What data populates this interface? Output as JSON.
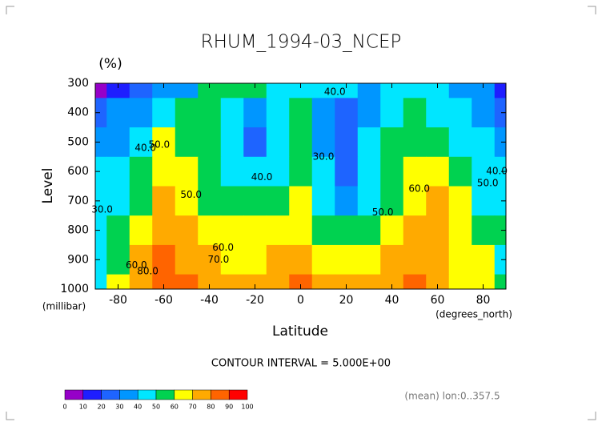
{
  "chart_data": {
    "type": "contour",
    "title": "RHUM_1994-03_NCEP",
    "unit": "(%)",
    "y_label": "Level",
    "y_unit": "(millibar)",
    "x_label": "Latitude",
    "x_unit": "(degrees_north)",
    "note": "CONTOUR INTERVAL = 5.000E+00",
    "footnote": "(mean) lon:0..357.5",
    "x": [
      -90,
      -80,
      -70,
      -60,
      -50,
      -40,
      -30,
      -20,
      -10,
      0,
      10,
      20,
      30,
      40,
      50,
      60,
      70,
      80,
      90
    ],
    "y": [
      300,
      400,
      500,
      600,
      700,
      800,
      900,
      1000
    ],
    "z": [
      [
        5,
        15,
        25,
        30,
        35,
        55,
        55,
        50,
        45,
        40,
        40,
        40,
        35,
        40,
        40,
        40,
        35,
        30,
        10
      ],
      [
        25,
        30,
        35,
        45,
        50,
        55,
        45,
        30,
        40,
        50,
        30,
        25,
        35,
        45,
        50,
        45,
        45,
        35,
        25
      ],
      [
        30,
        35,
        45,
        60,
        55,
        50,
        40,
        25,
        40,
        55,
        30,
        25,
        40,
        55,
        55,
        50,
        45,
        40,
        35
      ],
      [
        40,
        40,
        50,
        65,
        60,
        50,
        40,
        40,
        45,
        55,
        40,
        25,
        40,
        55,
        60,
        65,
        50,
        40,
        40
      ],
      [
        40,
        45,
        55,
        70,
        65,
        55,
        50,
        50,
        55,
        60,
        45,
        35,
        45,
        55,
        65,
        70,
        60,
        45,
        45
      ],
      [
        40,
        50,
        65,
        75,
        70,
        65,
        60,
        60,
        65,
        65,
        55,
        50,
        50,
        60,
        70,
        70,
        60,
        50,
        50
      ],
      [
        40,
        55,
        75,
        80,
        75,
        70,
        65,
        65,
        70,
        70,
        65,
        60,
        60,
        70,
        75,
        70,
        65,
        60,
        40
      ],
      [
        40,
        60,
        75,
        85,
        80,
        75,
        70,
        70,
        75,
        80,
        75,
        70,
        70,
        75,
        80,
        75,
        65,
        60,
        50
      ]
    ],
    "levels": [
      0,
      10,
      20,
      30,
      40,
      50,
      60,
      70,
      80,
      90,
      100
    ],
    "colors": [
      "#9600c8",
      "#1e1eff",
      "#1e64ff",
      "#0096ff",
      "#00e6ff",
      "#00d250",
      "#ffff00",
      "#ffaa00",
      "#ff6400",
      "#ff0000"
    ],
    "contour_labels": [
      {
        "value": 40,
        "label": "40.0",
        "x": 15,
        "y": 330
      },
      {
        "value": 30,
        "label": "30.0",
        "x": 10,
        "y": 550
      },
      {
        "value": 40,
        "label": "40.0",
        "x": -68,
        "y": 520
      },
      {
        "value": 50,
        "label": "50.0",
        "x": -62,
        "y": 510
      },
      {
        "value": 50,
        "label": "50.0",
        "x": -48,
        "y": 680
      },
      {
        "value": 40,
        "label": "40.0",
        "x": -17,
        "y": 620
      },
      {
        "value": 50,
        "label": "50.0",
        "x": 36,
        "y": 740
      },
      {
        "value": 60,
        "label": "60.0",
        "x": 52,
        "y": 660
      },
      {
        "value": 60,
        "label": "60.0",
        "x": -34,
        "y": 860
      },
      {
        "value": 70,
        "label": "70.0",
        "x": -36,
        "y": 900
      },
      {
        "value": 60,
        "label": "60.0",
        "x": -72,
        "y": 920
      },
      {
        "value": 80,
        "label": "80.0",
        "x": -67,
        "y": 940
      },
      {
        "value": 30,
        "label": "30.0",
        "x": -87,
        "y": 730
      },
      {
        "value": 40,
        "label": "40.0",
        "x": 86,
        "y": 600
      },
      {
        "value": 50,
        "label": "50.0",
        "x": 82,
        "y": 640
      }
    ],
    "xlim": [
      -90,
      90
    ],
    "ylim": [
      1000,
      300
    ],
    "xticks": [
      -80,
      -60,
      -40,
      -20,
      0,
      20,
      40,
      60,
      80
    ],
    "yticks": [
      300,
      400,
      500,
      600,
      700,
      800,
      900,
      1000
    ]
  }
}
